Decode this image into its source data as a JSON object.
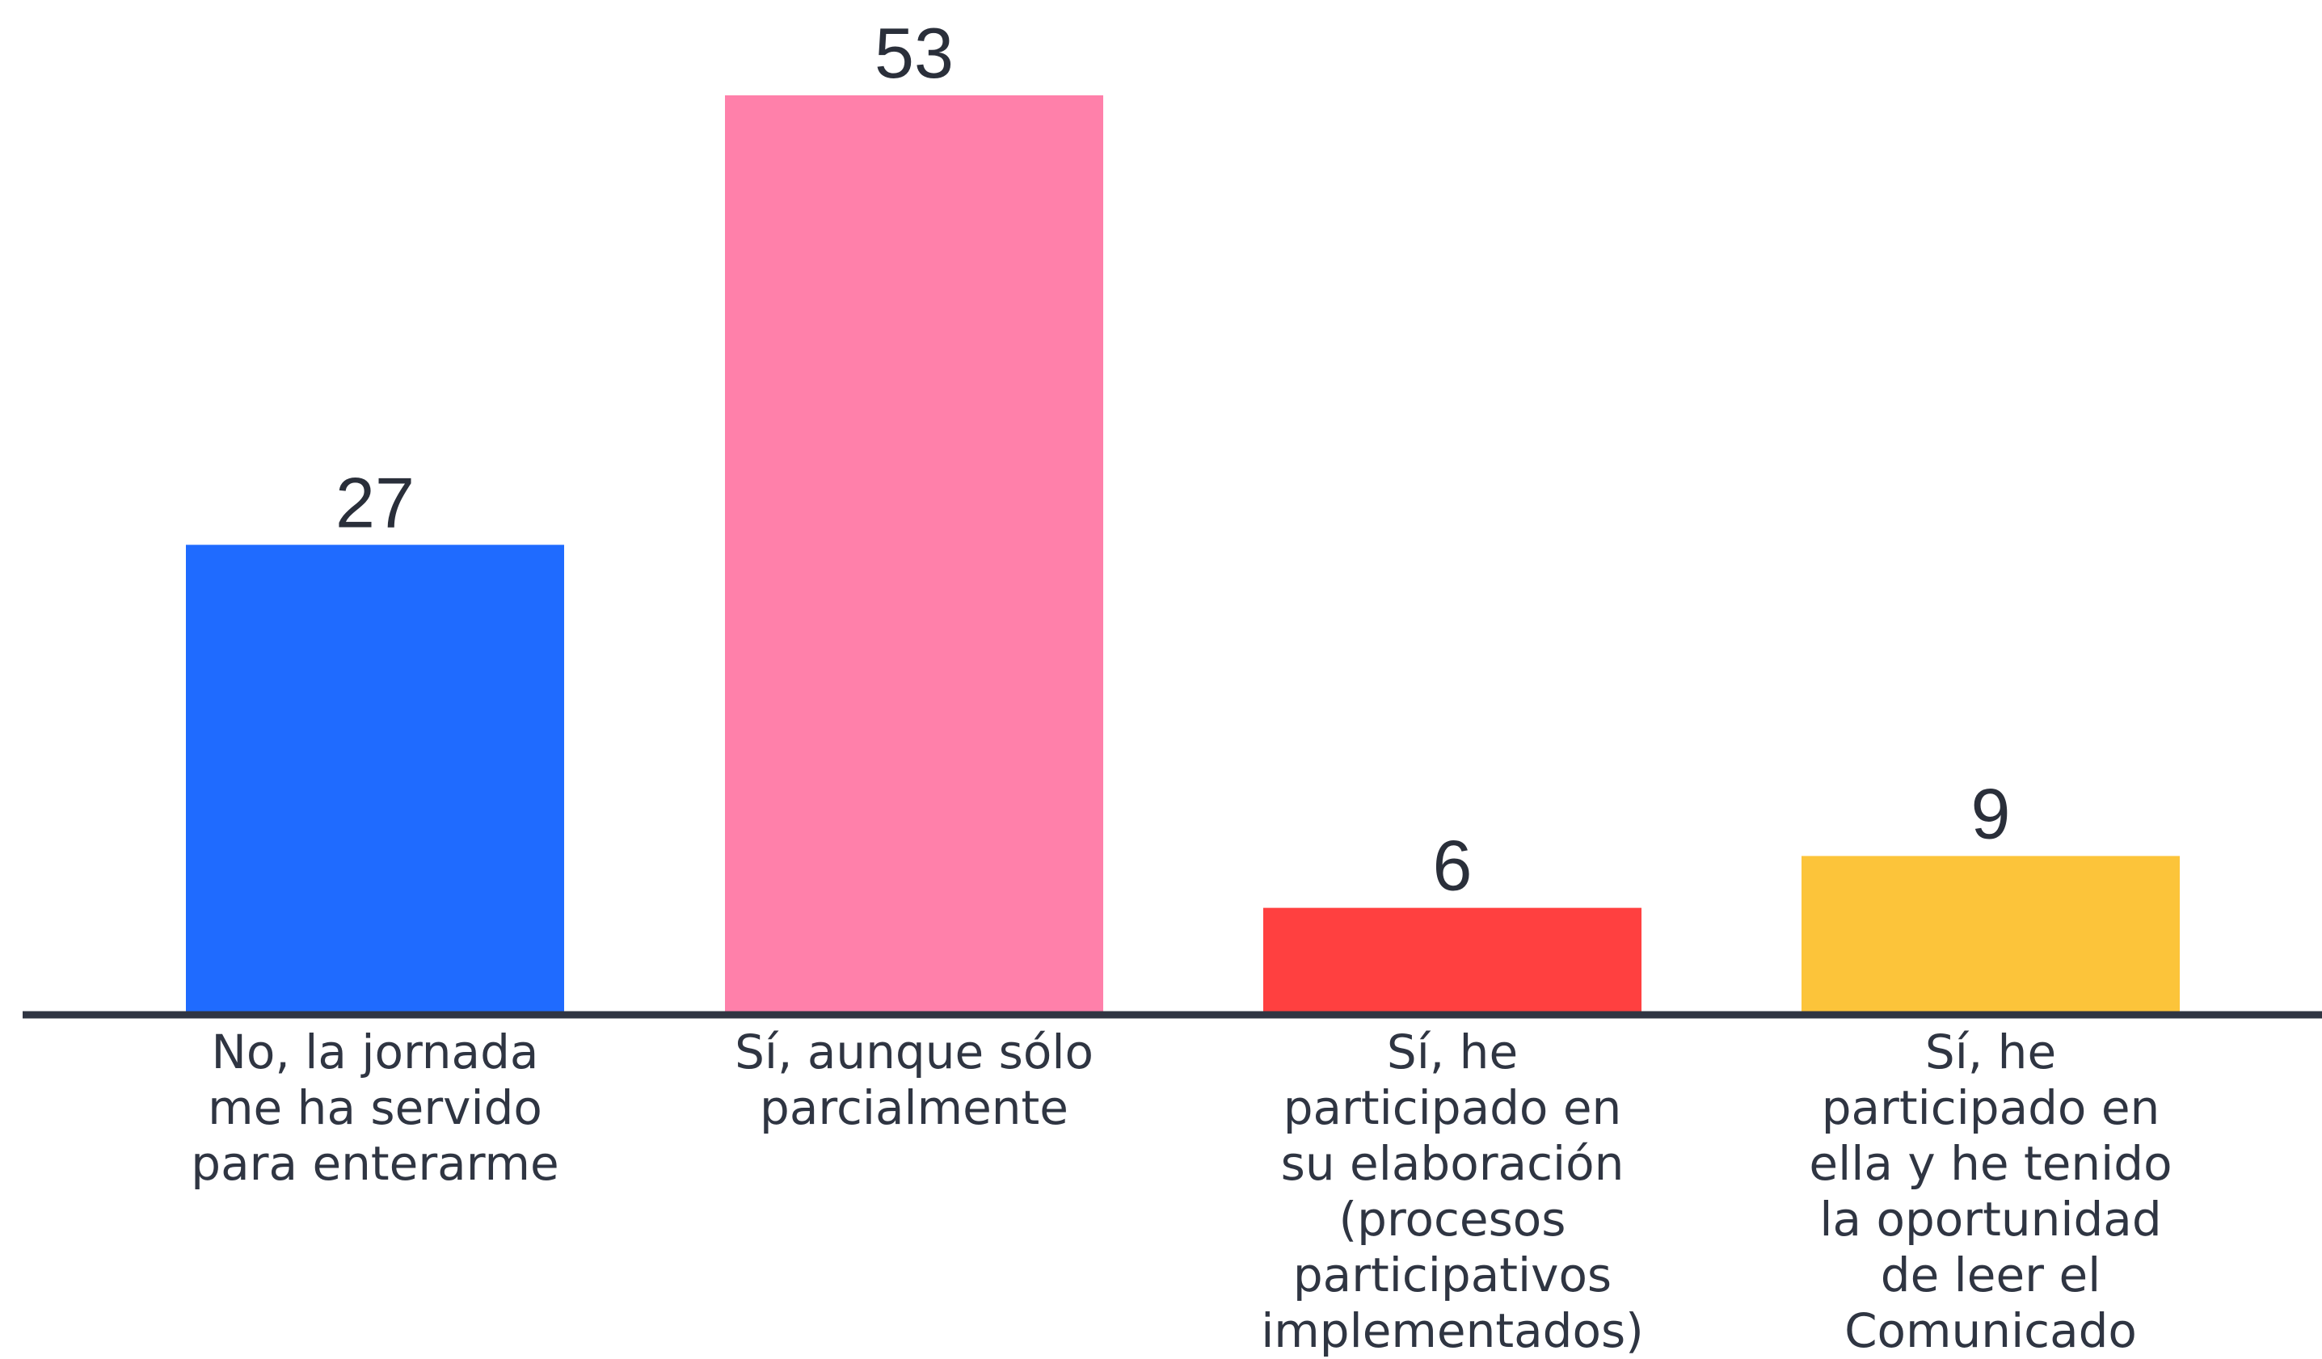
{
  "chart_data": {
    "type": "bar",
    "title": "",
    "xlabel": "",
    "ylabel": "",
    "categories": [
      [
        "No, la jornada",
        "me ha servido",
        "para enterarme"
      ],
      [
        "Sí, aunque sólo",
        "parcialmente"
      ],
      [
        "Sí, he",
        "participado en",
        "su elaboración",
        "(procesos",
        "participativos",
        "implementados)"
      ],
      [
        "Sí, he",
        "participado en",
        "ella y he tenido",
        "la oportunidad",
        "de leer el",
        "Comunicado"
      ]
    ],
    "values": [
      27,
      53,
      6,
      9
    ],
    "value_labels": [
      "27",
      "53",
      "6",
      "9"
    ],
    "colors": [
      "#1f6bff",
      "#ff80aa",
      "#ff4040",
      "#fcc43a"
    ],
    "ylim": [
      0,
      53
    ],
    "grid": false,
    "legend": "none"
  }
}
